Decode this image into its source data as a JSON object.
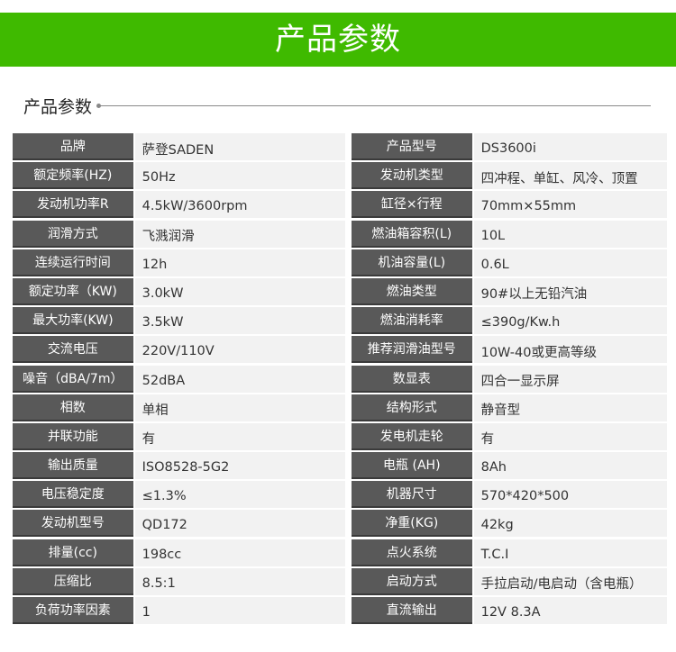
{
  "banner": {
    "title": "产品参数"
  },
  "section": {
    "title": "产品参数"
  },
  "colors": {
    "banner": "#3fba00",
    "label_bg": "#595959",
    "value_bg": "#f2f2f2"
  },
  "rows": [
    {
      "l1": "品牌",
      "v1": "萨登SADEN",
      "l2": "产品型号",
      "v2": "DS3600i"
    },
    {
      "l1": "额定频率(HZ)",
      "v1": "50Hz",
      "l2": "发动机类型",
      "v2": "四冲程、单缸、风冷、顶置"
    },
    {
      "l1": "发动机功率R",
      "v1": "4.5kW/3600rpm",
      "l2": "缸径×行程",
      "v2": "70mm×55mm"
    },
    {
      "l1": "润滑方式",
      "v1": "飞溅润滑",
      "l2": "燃油箱容积(L)",
      "v2": "10L"
    },
    {
      "l1": "连续运行时间",
      "v1": "12h",
      "l2": "机油容量(L)",
      "v2": "0.6L"
    },
    {
      "l1": "额定功率（KW)",
      "v1": "3.0kW",
      "l2": "燃油类型",
      "v2": "90#以上无铅汽油"
    },
    {
      "l1": "最大功率(KW)",
      "v1": "3.5kW",
      "l2": "燃油消耗率",
      "v2": "≤390g/Kw.h"
    },
    {
      "l1": "交流电压",
      "v1": "220V/110V",
      "l2": "推荐润滑油型号",
      "v2": "10W-40或更高等级"
    },
    {
      "l1": "噪音（dBA/7m）",
      "v1": "52dBA",
      "l2": "数显表",
      "v2": "四合一显示屏"
    },
    {
      "l1": "相数",
      "v1": "单相",
      "l2": "结构形式",
      "v2": "静音型"
    },
    {
      "l1": "并联功能",
      "v1": "有",
      "l2": "发电机走轮",
      "v2": "有"
    },
    {
      "l1": "输出质量",
      "v1": "ISO8528-5G2",
      "l2": "电瓶 (AH)",
      "v2": "8Ah"
    },
    {
      "l1": "电压稳定度",
      "v1": "≤1.3%",
      "l2": "机器尺寸",
      "v2": "570*420*500"
    },
    {
      "l1": "发动机型号",
      "v1": "QD172",
      "l2": "净重(KG)",
      "v2": "42kg"
    },
    {
      "l1": "排量(cc)",
      "v1": "198cc",
      "l2": "点火系统",
      "v2": "T.C.I"
    },
    {
      "l1": "压缩比",
      "v1": "8.5:1",
      "l2": "启动方式",
      "v2": "手拉启动/电启动（含电瓶）"
    },
    {
      "l1": "负荷功率因素",
      "v1": "1",
      "l2": "直流输出",
      "v2": " 12V 8.3A"
    }
  ]
}
